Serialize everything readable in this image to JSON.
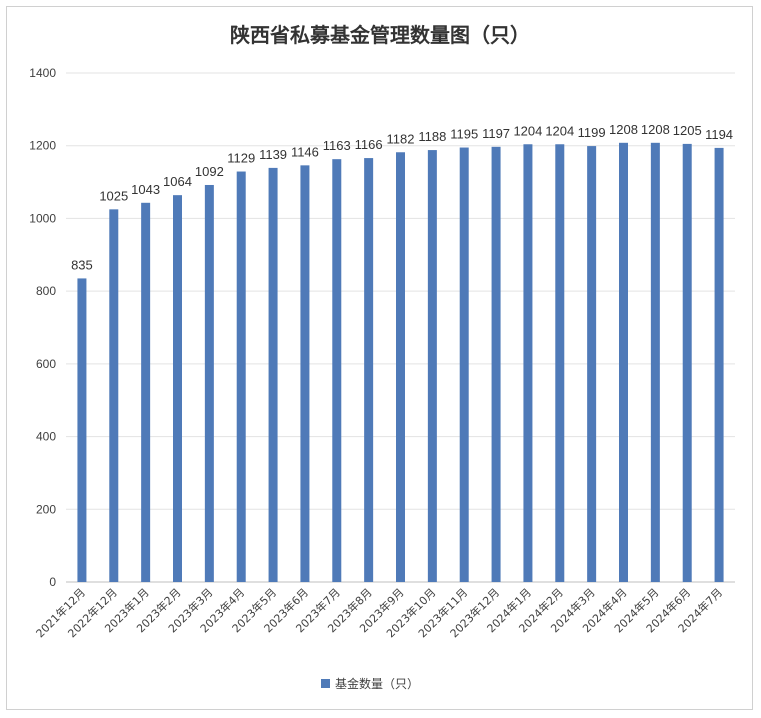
{
  "chart_data": {
    "type": "bar",
    "title": "陕西省私募基金管理数量图（只）",
    "categories": [
      "2021年12月",
      "2022年12月",
      "2023年1月",
      "2023年2月",
      "2023年3月",
      "2023年4月",
      "2023年5月",
      "2023年6月",
      "2023年7月",
      "2023年8月",
      "2023年9月",
      "2023年10月",
      "2023年11月",
      "2023年12月",
      "2024年1月",
      "2024年2月",
      "2024年3月",
      "2024年4月",
      "2024年5月",
      "2024年6月",
      "2024年7月"
    ],
    "series": [
      {
        "name": "基金数量（只）",
        "values": [
          835,
          1025,
          1043,
          1064,
          1092,
          1129,
          1139,
          1146,
          1163,
          1166,
          1182,
          1188,
          1195,
          1197,
          1204,
          1204,
          1199,
          1208,
          1208,
          1205,
          1194
        ]
      }
    ],
    "ylim": [
      0,
      1400
    ],
    "yticks": [
      0,
      200,
      400,
      600,
      800,
      1000,
      1200,
      1400
    ],
    "grid": true,
    "legend_position": "bottom",
    "bar_color": "#4f7ab8"
  }
}
